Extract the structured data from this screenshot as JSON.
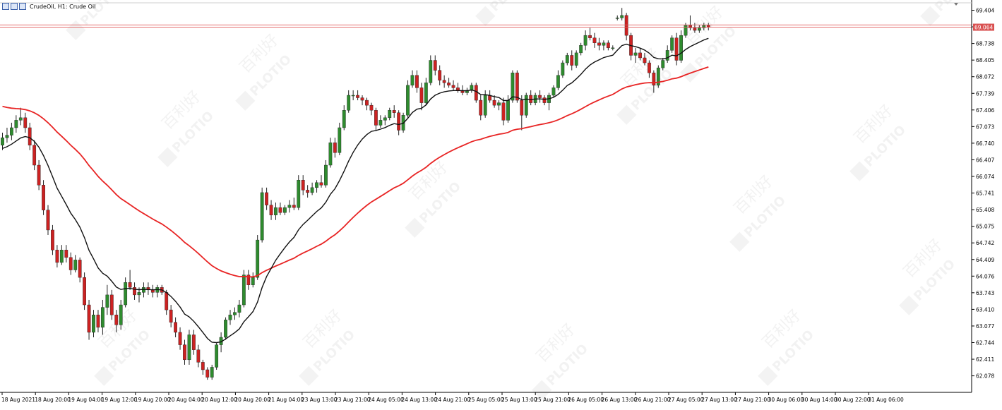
{
  "header": {
    "title": "CrudeOil, H1:  Crude Oil",
    "icons": [
      "window-menu-icon",
      "indicator-list-icon",
      "trade-icon"
    ]
  },
  "watermark": {
    "brand": "PLOTIO",
    "chinese": "百利好"
  },
  "current_price_label": "69.064",
  "price_ticks": [
    "69.404",
    "69.071",
    "68.738",
    "68.405",
    "68.072",
    "67.739",
    "67.406",
    "67.073",
    "66.740",
    "66.407",
    "66.074",
    "65.741",
    "65.408",
    "65.075",
    "64.742",
    "64.409",
    "64.076",
    "63.743",
    "63.410",
    "63.077",
    "62.744",
    "62.411",
    "62.078"
  ],
  "time_ticks": [
    "18 Aug 2021",
    "18 Aug 20:00",
    "19 Aug 04:00",
    "19 Aug 12:00",
    "19 Aug 20:00",
    "20 Aug 04:00",
    "20 Aug 12:00",
    "20 Aug 20:00",
    "21 Aug 04:00",
    "23 Aug 13:00",
    "23 Aug 21:00",
    "24 Aug 05:00",
    "24 Aug 13:00",
    "24 Aug 21:00",
    "25 Aug 05:00",
    "25 Aug 13:00",
    "25 Aug 21:00",
    "26 Aug 05:00",
    "26 Aug 13:00",
    "26 Aug 21:00",
    "27 Aug 05:00",
    "27 Aug 13:00",
    "27 Aug 21:00",
    "30 Aug 06:00",
    "30 Aug 14:00",
    "30 Aug 22:00",
    "31 Aug 06:00"
  ],
  "colors": {
    "bull": "#2e8b2e",
    "bear": "#cc2222",
    "ma_fast": "#111111",
    "ma_slow": "#e82424",
    "price_line": "#e06060",
    "price_label_bg": "#d95050"
  },
  "chart_data": {
    "type": "candlestick",
    "symbol": "CrudeOil",
    "timeframe": "H1",
    "description": "Crude Oil",
    "ylim": [
      62.0,
      69.5
    ],
    "current_price": 69.064,
    "ask_price": 69.11,
    "candles": [
      {
        "o": 66.7,
        "h": 66.95,
        "l": 66.6,
        "c": 66.85
      },
      {
        "o": 66.85,
        "h": 67.05,
        "l": 66.75,
        "c": 66.9
      },
      {
        "o": 66.9,
        "h": 67.15,
        "l": 66.8,
        "c": 67.05
      },
      {
        "o": 67.05,
        "h": 67.3,
        "l": 66.95,
        "c": 67.2
      },
      {
        "o": 67.2,
        "h": 67.45,
        "l": 67.1,
        "c": 67.25
      },
      {
        "o": 67.25,
        "h": 67.35,
        "l": 66.95,
        "c": 67.05
      },
      {
        "o": 67.05,
        "h": 67.15,
        "l": 66.6,
        "c": 66.7
      },
      {
        "o": 66.7,
        "h": 66.8,
        "l": 66.2,
        "c": 66.3
      },
      {
        "o": 66.3,
        "h": 66.4,
        "l": 65.8,
        "c": 65.9
      },
      {
        "o": 65.9,
        "h": 66.0,
        "l": 65.3,
        "c": 65.4
      },
      {
        "o": 65.4,
        "h": 65.5,
        "l": 64.9,
        "c": 65.0
      },
      {
        "o": 65.0,
        "h": 65.1,
        "l": 64.5,
        "c": 64.6
      },
      {
        "o": 64.6,
        "h": 64.7,
        "l": 64.25,
        "c": 64.35
      },
      {
        "o": 64.35,
        "h": 64.7,
        "l": 64.3,
        "c": 64.6
      },
      {
        "o": 64.6,
        "h": 64.7,
        "l": 64.35,
        "c": 64.45
      },
      {
        "o": 64.45,
        "h": 64.55,
        "l": 64.1,
        "c": 64.2
      },
      {
        "o": 64.2,
        "h": 64.5,
        "l": 64.15,
        "c": 64.4
      },
      {
        "o": 64.4,
        "h": 64.45,
        "l": 63.95,
        "c": 64.05
      },
      {
        "o": 64.05,
        "h": 64.15,
        "l": 63.4,
        "c": 63.5
      },
      {
        "o": 63.5,
        "h": 63.6,
        "l": 62.8,
        "c": 62.95
      },
      {
        "o": 62.95,
        "h": 63.4,
        "l": 62.85,
        "c": 63.3
      },
      {
        "o": 63.3,
        "h": 63.4,
        "l": 62.95,
        "c": 63.05
      },
      {
        "o": 63.05,
        "h": 63.6,
        "l": 62.9,
        "c": 63.45
      },
      {
        "o": 63.45,
        "h": 63.9,
        "l": 63.3,
        "c": 63.7
      },
      {
        "o": 63.7,
        "h": 63.8,
        "l": 63.2,
        "c": 63.3
      },
      {
        "o": 63.3,
        "h": 63.4,
        "l": 62.95,
        "c": 63.1
      },
      {
        "o": 63.1,
        "h": 63.6,
        "l": 63.0,
        "c": 63.5
      },
      {
        "o": 63.5,
        "h": 64.05,
        "l": 63.45,
        "c": 63.95
      },
      {
        "o": 63.95,
        "h": 64.2,
        "l": 63.8,
        "c": 63.85
      },
      {
        "o": 63.85,
        "h": 63.95,
        "l": 63.6,
        "c": 63.7
      },
      {
        "o": 63.7,
        "h": 63.85,
        "l": 63.55,
        "c": 63.75
      },
      {
        "o": 63.75,
        "h": 63.95,
        "l": 63.65,
        "c": 63.85
      },
      {
        "o": 63.85,
        "h": 63.95,
        "l": 63.7,
        "c": 63.8
      },
      {
        "o": 63.8,
        "h": 63.9,
        "l": 63.65,
        "c": 63.75
      },
      {
        "o": 63.75,
        "h": 63.9,
        "l": 63.65,
        "c": 63.85
      },
      {
        "o": 63.85,
        "h": 63.9,
        "l": 63.7,
        "c": 63.75
      },
      {
        "o": 63.75,
        "h": 63.8,
        "l": 63.3,
        "c": 63.4
      },
      {
        "o": 63.4,
        "h": 63.5,
        "l": 63.05,
        "c": 63.15
      },
      {
        "o": 63.15,
        "h": 63.25,
        "l": 62.85,
        "c": 62.95
      },
      {
        "o": 62.95,
        "h": 63.05,
        "l": 62.6,
        "c": 62.7
      },
      {
        "o": 62.7,
        "h": 62.8,
        "l": 62.3,
        "c": 62.4
      },
      {
        "o": 62.4,
        "h": 63.0,
        "l": 62.3,
        "c": 62.9
      },
      {
        "o": 62.9,
        "h": 63.0,
        "l": 62.5,
        "c": 62.6
      },
      {
        "o": 62.6,
        "h": 62.7,
        "l": 62.25,
        "c": 62.35
      },
      {
        "o": 62.35,
        "h": 62.4,
        "l": 62.1,
        "c": 62.2
      },
      {
        "o": 62.2,
        "h": 62.25,
        "l": 62.0,
        "c": 62.05
      },
      {
        "o": 62.05,
        "h": 62.3,
        "l": 62.0,
        "c": 62.25
      },
      {
        "o": 62.25,
        "h": 62.75,
        "l": 62.2,
        "c": 62.7
      },
      {
        "o": 62.7,
        "h": 62.95,
        "l": 62.55,
        "c": 62.85
      },
      {
        "o": 62.85,
        "h": 63.25,
        "l": 62.8,
        "c": 63.2
      },
      {
        "o": 63.2,
        "h": 63.4,
        "l": 63.1,
        "c": 63.3
      },
      {
        "o": 63.3,
        "h": 63.45,
        "l": 63.2,
        "c": 63.35
      },
      {
        "o": 63.35,
        "h": 63.6,
        "l": 63.25,
        "c": 63.5
      },
      {
        "o": 63.5,
        "h": 64.2,
        "l": 63.45,
        "c": 64.1
      },
      {
        "o": 64.1,
        "h": 64.2,
        "l": 63.8,
        "c": 63.9
      },
      {
        "o": 63.9,
        "h": 64.15,
        "l": 63.85,
        "c": 64.05
      },
      {
        "o": 64.05,
        "h": 64.9,
        "l": 64.0,
        "c": 64.8
      },
      {
        "o": 64.8,
        "h": 65.85,
        "l": 64.75,
        "c": 65.75
      },
      {
        "o": 65.75,
        "h": 65.85,
        "l": 65.4,
        "c": 65.5
      },
      {
        "o": 65.5,
        "h": 65.6,
        "l": 65.2,
        "c": 65.3
      },
      {
        "o": 65.3,
        "h": 65.55,
        "l": 65.2,
        "c": 65.45
      },
      {
        "o": 65.45,
        "h": 65.55,
        "l": 65.3,
        "c": 65.35
      },
      {
        "o": 65.35,
        "h": 65.5,
        "l": 65.3,
        "c": 65.45
      },
      {
        "o": 65.45,
        "h": 65.6,
        "l": 65.35,
        "c": 65.5
      },
      {
        "o": 65.5,
        "h": 65.65,
        "l": 65.4,
        "c": 65.45
      },
      {
        "o": 65.45,
        "h": 66.1,
        "l": 65.4,
        "c": 66.0
      },
      {
        "o": 66.0,
        "h": 66.1,
        "l": 65.7,
        "c": 65.8
      },
      {
        "o": 65.8,
        "h": 65.9,
        "l": 65.65,
        "c": 65.75
      },
      {
        "o": 65.75,
        "h": 65.95,
        "l": 65.7,
        "c": 65.85
      },
      {
        "o": 65.85,
        "h": 66.0,
        "l": 65.75,
        "c": 65.95
      },
      {
        "o": 65.95,
        "h": 66.1,
        "l": 65.85,
        "c": 65.9
      },
      {
        "o": 65.9,
        "h": 66.4,
        "l": 65.85,
        "c": 66.3
      },
      {
        "o": 66.3,
        "h": 66.85,
        "l": 66.25,
        "c": 66.75
      },
      {
        "o": 66.75,
        "h": 66.85,
        "l": 66.45,
        "c": 66.55
      },
      {
        "o": 66.55,
        "h": 67.15,
        "l": 66.5,
        "c": 67.05
      },
      {
        "o": 67.05,
        "h": 67.5,
        "l": 67.0,
        "c": 67.4
      },
      {
        "o": 67.4,
        "h": 67.8,
        "l": 67.35,
        "c": 67.7
      },
      {
        "o": 67.7,
        "h": 67.8,
        "l": 67.6,
        "c": 67.7
      },
      {
        "o": 67.7,
        "h": 67.8,
        "l": 67.6,
        "c": 67.65
      },
      {
        "o": 67.65,
        "h": 67.7,
        "l": 67.5,
        "c": 67.6
      },
      {
        "o": 67.6,
        "h": 67.65,
        "l": 67.4,
        "c": 67.5
      },
      {
        "o": 67.5,
        "h": 67.55,
        "l": 67.3,
        "c": 67.4
      },
      {
        "o": 67.4,
        "h": 67.45,
        "l": 67.0,
        "c": 67.1
      },
      {
        "o": 67.1,
        "h": 67.3,
        "l": 67.05,
        "c": 67.2
      },
      {
        "o": 67.2,
        "h": 67.3,
        "l": 67.1,
        "c": 67.25
      },
      {
        "o": 67.25,
        "h": 67.45,
        "l": 67.2,
        "c": 67.4
      },
      {
        "o": 67.4,
        "h": 67.5,
        "l": 67.25,
        "c": 67.35
      },
      {
        "o": 67.35,
        "h": 67.4,
        "l": 66.9,
        "c": 67.0
      },
      {
        "o": 67.0,
        "h": 67.35,
        "l": 66.95,
        "c": 67.3
      },
      {
        "o": 67.3,
        "h": 68.0,
        "l": 67.25,
        "c": 67.9
      },
      {
        "o": 67.9,
        "h": 68.2,
        "l": 67.85,
        "c": 68.1
      },
      {
        "o": 68.1,
        "h": 68.2,
        "l": 67.75,
        "c": 67.85
      },
      {
        "o": 67.85,
        "h": 67.95,
        "l": 67.4,
        "c": 67.55
      },
      {
        "o": 67.55,
        "h": 68.05,
        "l": 67.5,
        "c": 67.95
      },
      {
        "o": 67.95,
        "h": 68.5,
        "l": 67.9,
        "c": 68.4
      },
      {
        "o": 68.4,
        "h": 68.5,
        "l": 68.1,
        "c": 68.2
      },
      {
        "o": 68.2,
        "h": 68.3,
        "l": 67.9,
        "c": 68.0
      },
      {
        "o": 68.0,
        "h": 68.1,
        "l": 67.85,
        "c": 67.95
      },
      {
        "o": 67.95,
        "h": 68.05,
        "l": 67.85,
        "c": 67.9
      },
      {
        "o": 67.9,
        "h": 68.0,
        "l": 67.8,
        "c": 67.85
      },
      {
        "o": 67.85,
        "h": 67.95,
        "l": 67.75,
        "c": 67.8
      },
      {
        "o": 67.8,
        "h": 67.9,
        "l": 67.7,
        "c": 67.75
      },
      {
        "o": 67.75,
        "h": 67.85,
        "l": 67.7,
        "c": 67.8
      },
      {
        "o": 67.8,
        "h": 67.95,
        "l": 67.75,
        "c": 67.9
      },
      {
        "o": 67.9,
        "h": 67.95,
        "l": 67.55,
        "c": 67.6
      },
      {
        "o": 67.6,
        "h": 67.7,
        "l": 67.2,
        "c": 67.3
      },
      {
        "o": 67.3,
        "h": 67.8,
        "l": 67.25,
        "c": 67.7
      },
      {
        "o": 67.7,
        "h": 67.8,
        "l": 67.55,
        "c": 67.6
      },
      {
        "o": 67.6,
        "h": 67.7,
        "l": 67.45,
        "c": 67.5
      },
      {
        "o": 67.5,
        "h": 67.6,
        "l": 67.4,
        "c": 67.55
      },
      {
        "o": 67.55,
        "h": 67.65,
        "l": 67.1,
        "c": 67.2
      },
      {
        "o": 67.2,
        "h": 67.7,
        "l": 67.15,
        "c": 67.6
      },
      {
        "o": 67.6,
        "h": 68.2,
        "l": 67.55,
        "c": 68.15
      },
      {
        "o": 68.15,
        "h": 68.2,
        "l": 67.55,
        "c": 67.6
      },
      {
        "o": 67.6,
        "h": 67.7,
        "l": 67.0,
        "c": 67.3
      },
      {
        "o": 67.3,
        "h": 67.75,
        "l": 67.25,
        "c": 67.7
      },
      {
        "o": 67.7,
        "h": 67.8,
        "l": 67.5,
        "c": 67.55
      },
      {
        "o": 67.55,
        "h": 67.75,
        "l": 67.5,
        "c": 67.7
      },
      {
        "o": 67.7,
        "h": 67.8,
        "l": 67.55,
        "c": 67.65
      },
      {
        "o": 67.65,
        "h": 67.7,
        "l": 67.5,
        "c": 67.55
      },
      {
        "o": 67.55,
        "h": 67.75,
        "l": 67.4,
        "c": 67.7
      },
      {
        "o": 67.7,
        "h": 67.9,
        "l": 67.65,
        "c": 67.85
      },
      {
        "o": 67.85,
        "h": 68.2,
        "l": 67.8,
        "c": 68.1
      },
      {
        "o": 68.1,
        "h": 68.4,
        "l": 68.05,
        "c": 68.35
      },
      {
        "o": 68.35,
        "h": 68.55,
        "l": 68.3,
        "c": 68.5
      },
      {
        "o": 68.5,
        "h": 68.6,
        "l": 68.2,
        "c": 68.3
      },
      {
        "o": 68.3,
        "h": 68.6,
        "l": 68.25,
        "c": 68.55
      },
      {
        "o": 68.55,
        "h": 68.75,
        "l": 68.5,
        "c": 68.7
      },
      {
        "o": 68.7,
        "h": 69.0,
        "l": 68.6,
        "c": 68.9
      },
      {
        "o": 68.9,
        "h": 69.05,
        "l": 68.8,
        "c": 68.85
      },
      {
        "o": 68.85,
        "h": 68.95,
        "l": 68.65,
        "c": 68.75
      },
      {
        "o": 68.75,
        "h": 68.85,
        "l": 68.6,
        "c": 68.7
      },
      {
        "o": 68.7,
        "h": 68.8,
        "l": 68.6,
        "c": 68.75
      },
      {
        "o": 68.75,
        "h": 68.8,
        "l": 68.6,
        "c": 68.65
      },
      {
        "o": 68.65,
        "h": 68.7,
        "l": 68.6,
        "c": 68.65
      },
      {
        "o": 69.25,
        "h": 69.3,
        "l": 69.2,
        "c": 69.25
      },
      {
        "o": 69.25,
        "h": 69.45,
        "l": 69.2,
        "c": 69.3
      },
      {
        "o": 69.3,
        "h": 69.35,
        "l": 68.8,
        "c": 68.9
      },
      {
        "o": 68.9,
        "h": 68.95,
        "l": 68.4,
        "c": 68.5
      },
      {
        "o": 68.5,
        "h": 68.65,
        "l": 68.35,
        "c": 68.55
      },
      {
        "o": 68.55,
        "h": 68.65,
        "l": 68.4,
        "c": 68.45
      },
      {
        "o": 68.45,
        "h": 68.55,
        "l": 68.3,
        "c": 68.35
      },
      {
        "o": 68.35,
        "h": 68.4,
        "l": 68.05,
        "c": 68.15
      },
      {
        "o": 68.15,
        "h": 68.2,
        "l": 67.75,
        "c": 67.9
      },
      {
        "o": 67.9,
        "h": 68.3,
        "l": 67.85,
        "c": 68.25
      },
      {
        "o": 68.25,
        "h": 68.45,
        "l": 68.2,
        "c": 68.4
      },
      {
        "o": 68.4,
        "h": 68.7,
        "l": 68.35,
        "c": 68.6
      },
      {
        "o": 68.6,
        "h": 68.9,
        "l": 68.55,
        "c": 68.85
      },
      {
        "o": 68.85,
        "h": 68.95,
        "l": 68.3,
        "c": 68.4
      },
      {
        "o": 68.4,
        "h": 69.0,
        "l": 68.35,
        "c": 68.9
      },
      {
        "o": 68.9,
        "h": 69.15,
        "l": 68.85,
        "c": 69.1
      },
      {
        "o": 69.1,
        "h": 69.3,
        "l": 69.0,
        "c": 69.05
      },
      {
        "o": 69.05,
        "h": 69.15,
        "l": 68.95,
        "c": 69.0
      },
      {
        "o": 69.0,
        "h": 69.1,
        "l": 68.95,
        "c": 69.05
      },
      {
        "o": 69.05,
        "h": 69.15,
        "l": 69.0,
        "c": 69.1
      },
      {
        "o": 69.1,
        "h": 69.15,
        "l": 69.0,
        "c": 69.06
      }
    ]
  }
}
